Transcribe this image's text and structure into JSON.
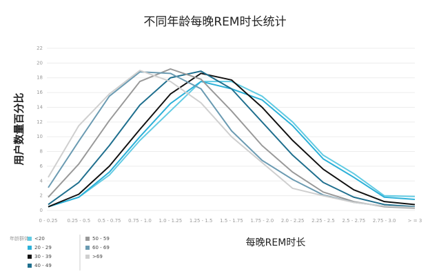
{
  "chart_data": {
    "type": "line",
    "title": "不同年龄每晚REM时长统计",
    "y_label": "用户数量百分比",
    "x_label": "每晚REM时长",
    "legend_title": "年龄群体",
    "categories": [
      "0 - 0.25",
      "0.25 - 0.5",
      "0.5 - 0.75",
      "0.75 - 1.0",
      "1.0 - 1.25",
      "1.25 - 1.5",
      "1.5 - 1.75",
      "1.75 - 2.0",
      "2.0 - 2.25",
      "2.25 - 2.5",
      "2.5 - 2.75",
      "2.75 - 3.0",
      "> = 3"
    ],
    "ylim": [
      0,
      22
    ],
    "yticks": [
      0,
      2,
      4,
      6,
      8,
      10,
      12,
      14,
      16,
      18,
      20,
      22
    ],
    "grid": true,
    "series": [
      {
        "name": "<20",
        "color": "#62cbe3",
        "values": [
          0.5,
          1.8,
          4.8,
          9.5,
          13.5,
          17.5,
          17.5,
          15.5,
          12,
          7.5,
          5,
          2,
          1.9
        ]
      },
      {
        "name": "20 - 29",
        "color": "#2cb0d8",
        "values": [
          0.5,
          1.8,
          5.2,
          10,
          14.5,
          17.5,
          16.5,
          15,
          11.5,
          7,
          4.5,
          1.8,
          1.5
        ]
      },
      {
        "name": "30 - 39",
        "color": "#111111",
        "values": [
          0.5,
          2.2,
          6,
          11,
          15.8,
          18.6,
          17.7,
          14,
          9.5,
          5.6,
          2.8,
          1.2,
          0.8
        ]
      },
      {
        "name": "40 - 49",
        "color": "#1f6f8e",
        "values": [
          0.8,
          3.8,
          8.8,
          14.3,
          18,
          18.9,
          16.5,
          12,
          7.5,
          3.8,
          1.8,
          0.8,
          0.5
        ]
      },
      {
        "name": "50 - 59",
        "color": "#999999",
        "values": [
          1.8,
          6.3,
          12.2,
          17.5,
          19.2,
          17.8,
          13.5,
          8.8,
          5.2,
          2.5,
          1.2,
          0.5,
          0.3
        ]
      },
      {
        "name": "60 - 69",
        "color": "#6b9bb2",
        "values": [
          3.1,
          9.4,
          15.5,
          18.8,
          18.6,
          16.5,
          10.8,
          6.8,
          4.2,
          2.1,
          1.1,
          0.6,
          0.4
        ]
      },
      {
        "name": ">69",
        "color": "#cfcfcf",
        "values": [
          4.5,
          11.5,
          15.8,
          19,
          17.5,
          14.6,
          10,
          6.5,
          3,
          2,
          1.1,
          0.6,
          0.4
        ]
      }
    ]
  }
}
